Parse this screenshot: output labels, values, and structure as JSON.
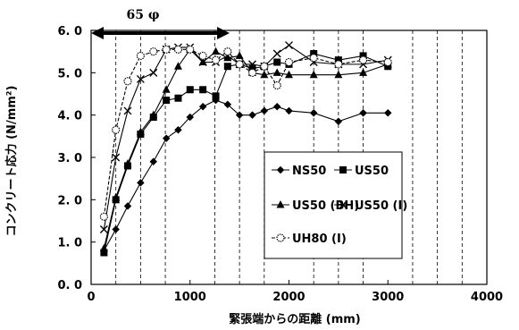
{
  "chart_data": {
    "type": "line",
    "title": "",
    "xlabel": "緊張端からの距離 (mm)",
    "ylabel": "コンクリート応力 (N/mm²)",
    "xlim": [
      0,
      4000
    ],
    "ylim": [
      0,
      6
    ],
    "xticks": [
      "0",
      "1000",
      "2000",
      "3000",
      "4000"
    ],
    "yticks": [
      "0. 0",
      "1. 0",
      "2. 0",
      "3. 0",
      "4. 0",
      "5. 0",
      "6. 0"
    ],
    "grid": "vertical dashed every 250 mm",
    "legend_position": "lower-right inside plot",
    "annotation": {
      "label": "65 φ",
      "x_start": 0,
      "x_end": 1400
    },
    "series": [
      {
        "name": "NS50",
        "marker": "diamond",
        "x": [
          130,
          250,
          370,
          500,
          630,
          760,
          880,
          1000,
          1130,
          1260,
          1380,
          1500,
          1630,
          1750,
          1880,
          2000,
          2250,
          2500,
          2750,
          3000
        ],
        "y": [
          0.8,
          1.3,
          1.85,
          2.4,
          2.9,
          3.45,
          3.65,
          3.95,
          4.2,
          4.35,
          4.25,
          4.0,
          4.0,
          4.1,
          4.2,
          4.1,
          4.05,
          3.85,
          4.05,
          4.05
        ]
      },
      {
        "name": "US50",
        "marker": "square",
        "x": [
          130,
          250,
          370,
          500,
          630,
          760,
          880,
          1000,
          1130,
          1260,
          1380,
          1500,
          1630,
          1750,
          1880,
          2000,
          2250,
          2500,
          2750,
          3000
        ],
        "y": [
          0.75,
          2.0,
          2.8,
          3.55,
          3.95,
          4.35,
          4.4,
          4.6,
          4.6,
          4.45,
          5.15,
          5.2,
          5.1,
          5.15,
          5.25,
          5.2,
          5.45,
          5.3,
          5.4,
          5.15
        ]
      },
      {
        "name": "US50 (BH)",
        "marker": "triangle",
        "x": [
          130,
          250,
          370,
          500,
          630,
          760,
          880,
          1000,
          1130,
          1260,
          1380,
          1500,
          1630,
          1750,
          1880,
          2000,
          2250,
          2500,
          2750,
          3000
        ],
        "y": [
          0.85,
          2.05,
          2.85,
          3.6,
          4.0,
          4.6,
          5.15,
          5.55,
          5.25,
          5.5,
          5.35,
          5.4,
          5.0,
          4.95,
          5.0,
          4.95,
          4.95,
          4.95,
          5.0,
          5.2
        ]
      },
      {
        "name": "US50 (I)",
        "marker": "x",
        "x": [
          130,
          250,
          370,
          500,
          630,
          760,
          880,
          1000,
          1130,
          1260,
          1380,
          1500,
          1630,
          1750,
          1880,
          2000,
          2250,
          2500,
          2750,
          3000
        ],
        "y": [
          1.3,
          3.0,
          4.1,
          4.85,
          5.0,
          5.55,
          5.6,
          5.6,
          5.25,
          5.25,
          5.4,
          5.2,
          5.2,
          5.15,
          5.45,
          5.65,
          5.25,
          5.2,
          5.2,
          5.3
        ]
      },
      {
        "name": "UH80 (I)",
        "marker": "circle",
        "x": [
          130,
          250,
          370,
          500,
          630,
          760,
          880,
          1000,
          1130,
          1260,
          1380,
          1500,
          1630,
          1750,
          1880,
          2000,
          2250,
          2500,
          2750,
          3000
        ],
        "y": [
          1.6,
          3.65,
          4.8,
          5.4,
          5.5,
          5.55,
          5.55,
          5.55,
          5.4,
          5.3,
          5.5,
          5.2,
          5.0,
          5.15,
          4.7,
          5.25,
          5.35,
          5.2,
          5.3,
          5.25
        ]
      }
    ]
  }
}
